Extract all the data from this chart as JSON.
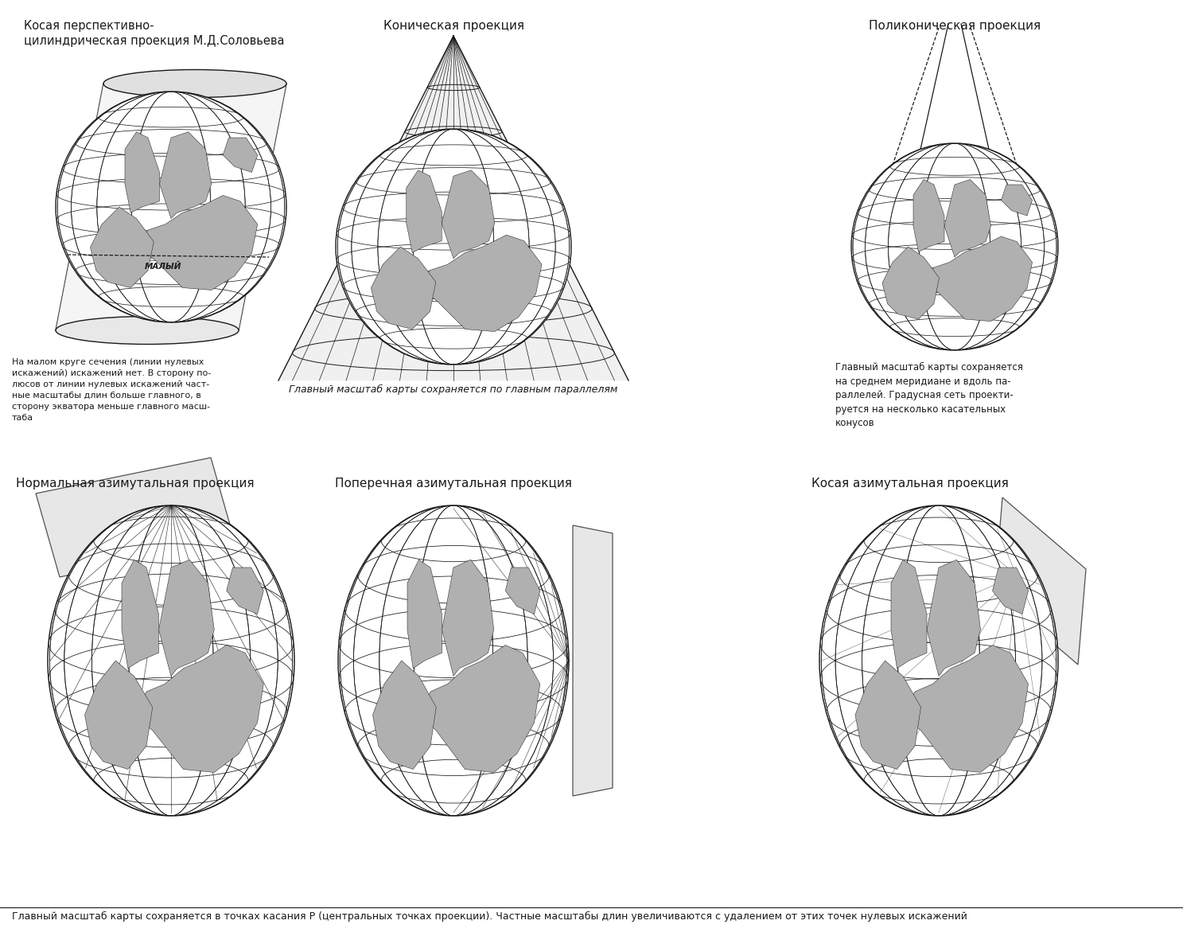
{
  "title1": "Косая перспективно-\nцилиндрическая проекция М.Д.Соловьева",
  "title2": "Коническая проекция",
  "title3": "Поликоническая проекция",
  "title4": "Нормальная азимутальная проекция",
  "title5": "Поперечная азимутальная проекция",
  "title6": "Косая азимутальная проекция",
  "caption1": "На малом круге сечения (линии нулевых\nискажений) искажений нет. В сторону по-\nлюсов от линии нулевых искажений част-\nные масштабы длин больше главного, в\nсторону экватора меньше главного масш-\nтаба",
  "caption2": "Главный масштаб карты сохраняется по главным параллелям",
  "caption3": "Главный масштаб карты сохраняется\nна среднем меридиане и вдоль па-\nраллелей. Градусная сеть проекти-\nруется на несколько касательных\nконусов",
  "caption_bottom": "Главный масштаб карты сохраняется в точках касания P (центральных точках проекции). Частные масштабы длин увеличиваются с удалением от этих точек нулевых искажений",
  "bg_color": "#ffffff",
  "line_color": "#1a1a1a",
  "light_gray": "#e8e8e8",
  "mid_gray": "#b0b0b0",
  "dark_gray": "#888888"
}
